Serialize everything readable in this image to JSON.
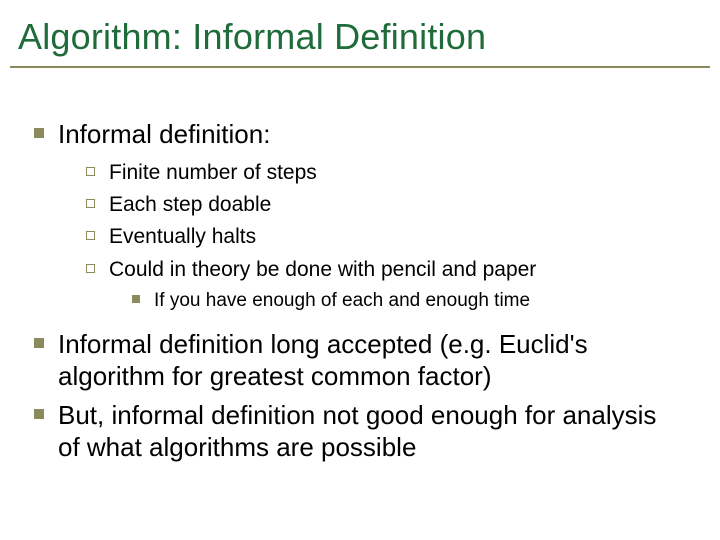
{
  "title": "Algorithm: Informal Definition",
  "colors": {
    "title": "#1f6b3a",
    "underline": "#8a8a5c",
    "bullet_fill": "#8a8a5c",
    "bullet_outline": "#8a8a5c",
    "body_text": "#000000",
    "background": "#ffffff"
  },
  "typography": {
    "title_fontsize": 36,
    "lvl1_fontsize": 26,
    "lvl2_fontsize": 21,
    "lvl3_fontsize": 19,
    "font_family": "Arial"
  },
  "bullets": {
    "lvl1": {
      "shape": "filled-square",
      "size": 10
    },
    "lvl2": {
      "shape": "outline-square",
      "size": 9
    },
    "lvl3": {
      "shape": "filled-square",
      "size": 8
    }
  },
  "content": {
    "items": [
      {
        "text": "Informal definition:",
        "sub": [
          {
            "text": "Finite number of steps"
          },
          {
            "text": "Each step doable"
          },
          {
            "text": "Eventually halts"
          },
          {
            "text": "Could in theory be done with pencil and paper",
            "sub": [
              {
                "text": "If you have enough of each and enough time"
              }
            ]
          }
        ]
      },
      {
        "text": "Informal definition long accepted (e.g. Euclid's algorithm for greatest common factor)"
      },
      {
        "text": "But, informal definition not good enough for analysis of what algorithms are possible"
      }
    ]
  }
}
